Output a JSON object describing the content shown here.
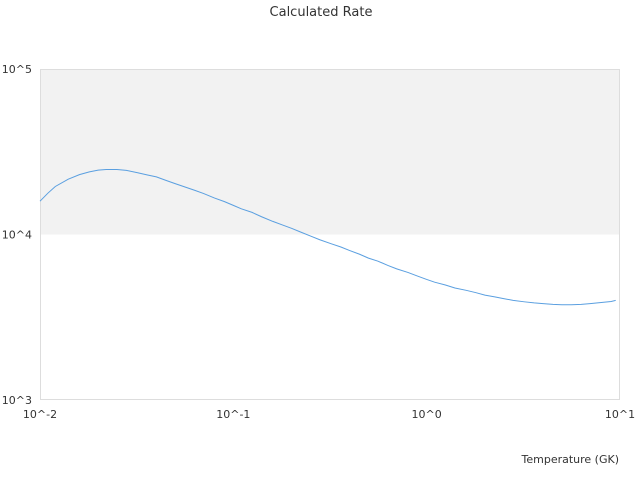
{
  "chart_data": {
    "type": "line",
    "title": "Calculated Rate",
    "xlabel": "Temperature (GK)",
    "ylabel": "",
    "x_scale": "log",
    "y_scale": "log",
    "xlim": [
      0.01,
      10
    ],
    "ylim": [
      1000,
      100000
    ],
    "x_ticks": [
      {
        "value": 0.01,
        "label": "10^-2"
      },
      {
        "value": 0.1,
        "label": "10^-1"
      },
      {
        "value": 1,
        "label": "10^0"
      },
      {
        "value": 10,
        "label": "10^1"
      }
    ],
    "y_ticks": [
      {
        "value": 1000,
        "label": "10^3"
      },
      {
        "value": 10000,
        "label": "10^4"
      },
      {
        "value": 100000,
        "label": "10^5"
      }
    ],
    "bands": [
      {
        "y_from": 10000,
        "y_to": 100000,
        "color": "#f2f2f2"
      }
    ],
    "grid": false,
    "legend": "none",
    "series": [
      {
        "color": "#5a9fe0",
        "x": [
          0.01,
          0.011,
          0.012,
          0.014,
          0.016,
          0.018,
          0.02,
          0.022,
          0.025,
          0.028,
          0.032,
          0.036,
          0.04,
          0.045,
          0.05,
          0.056,
          0.063,
          0.07,
          0.08,
          0.09,
          0.1,
          0.11,
          0.125,
          0.14,
          0.16,
          0.18,
          0.2,
          0.225,
          0.25,
          0.28,
          0.32,
          0.36,
          0.4,
          0.45,
          0.5,
          0.56,
          0.63,
          0.7,
          0.8,
          0.9,
          1.0,
          1.1,
          1.25,
          1.4,
          1.6,
          1.8,
          2.0,
          2.25,
          2.5,
          2.8,
          3.2,
          3.6,
          4.0,
          4.5,
          5.0,
          5.6,
          6.3,
          7.0,
          8.0,
          9.0,
          9.5
        ],
        "values": [
          15900,
          17800,
          19500,
          21600,
          23000,
          23900,
          24500,
          24700,
          24700,
          24400,
          23600,
          22900,
          22300,
          21200,
          20300,
          19400,
          18500,
          17700,
          16600,
          15800,
          15000,
          14300,
          13600,
          12800,
          12000,
          11400,
          10900,
          10300,
          9800,
          9300,
          8800,
          8400,
          8000,
          7600,
          7200,
          6900,
          6500,
          6200,
          5900,
          5600,
          5350,
          5150,
          4950,
          4750,
          4600,
          4450,
          4300,
          4200,
          4100,
          4000,
          3920,
          3860,
          3820,
          3780,
          3760,
          3760,
          3780,
          3820,
          3880,
          3940,
          4000
        ]
      }
    ]
  }
}
